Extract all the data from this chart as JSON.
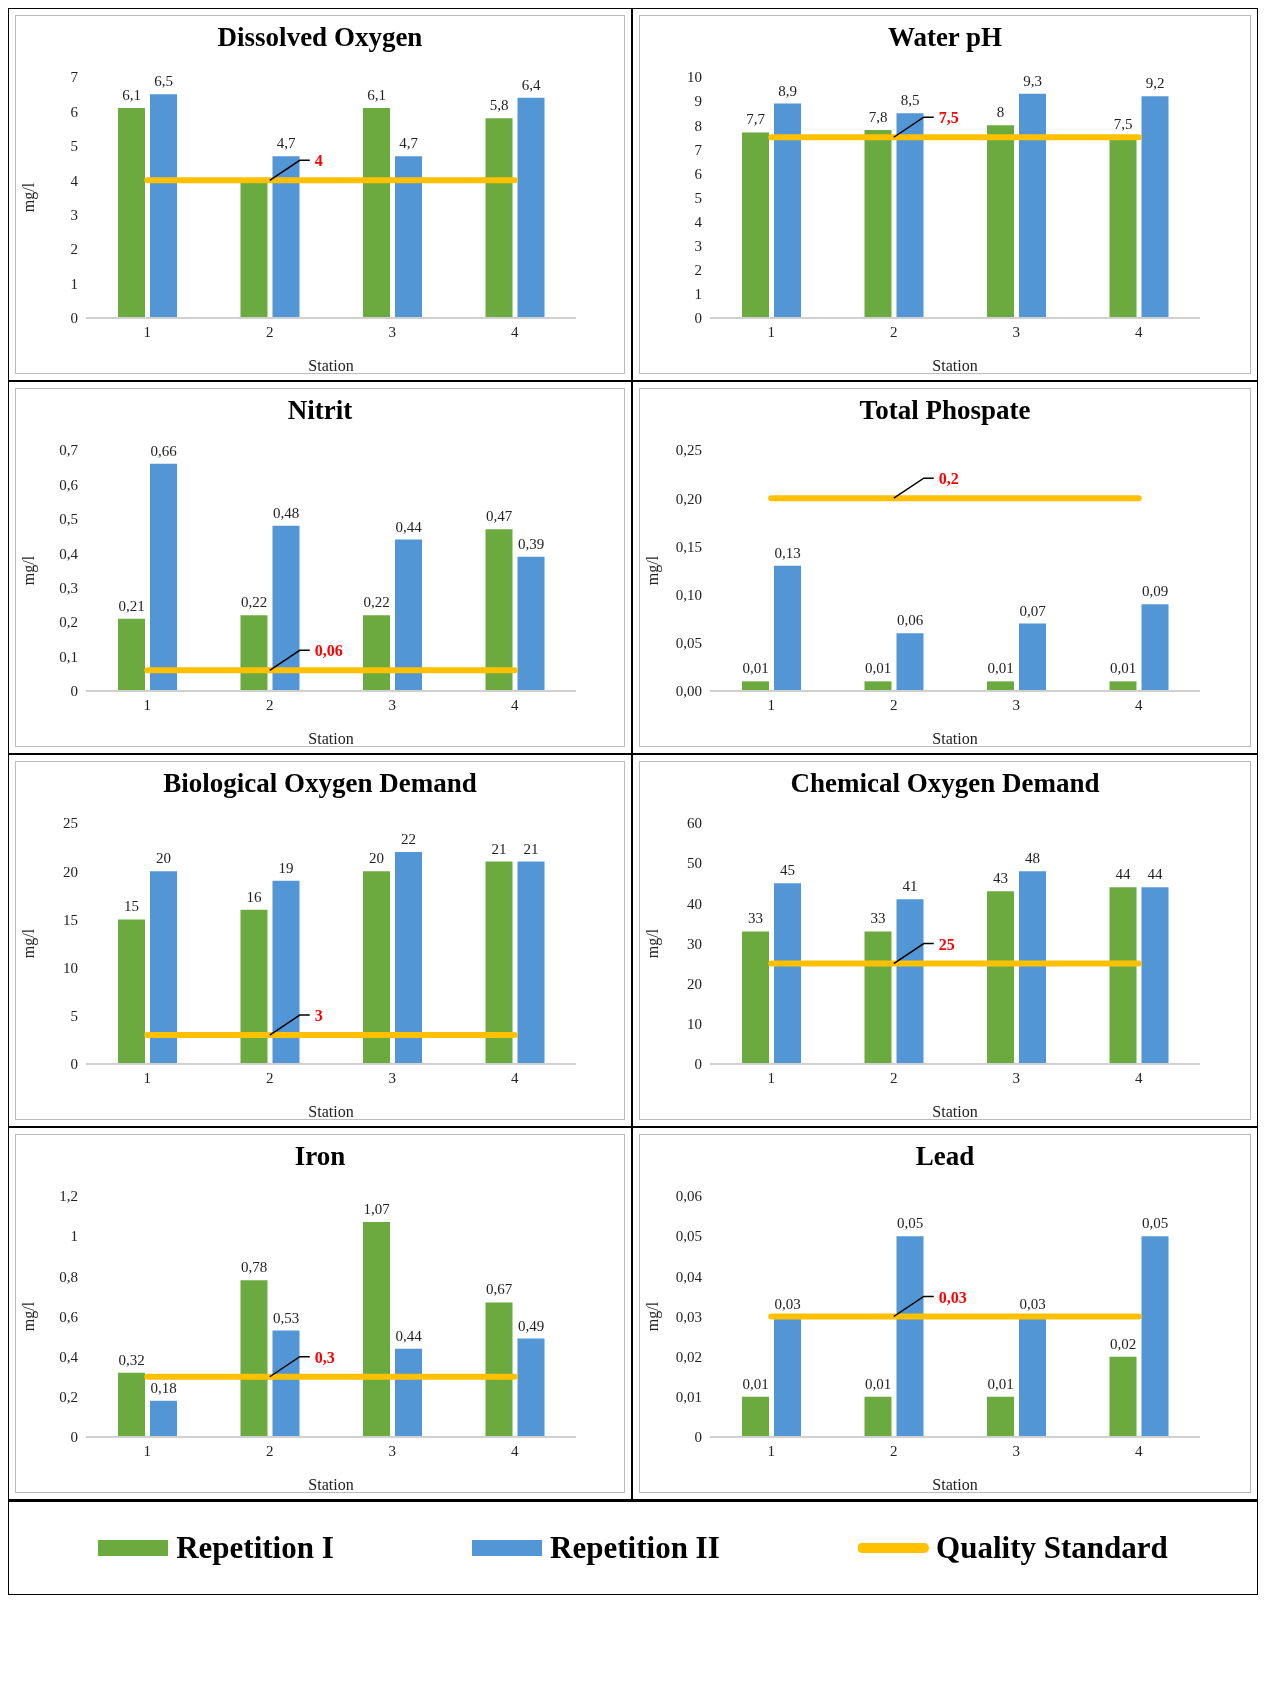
{
  "chart_data": [
    {
      "type": "bar",
      "title": "Dissolved Oxygen",
      "xlabel": "Station",
      "ylabel": "mg/l",
      "categories": [
        "1",
        "2",
        "3",
        "4"
      ],
      "ylim": [
        0,
        7
      ],
      "yticks": [
        0,
        1,
        2,
        3,
        4,
        5,
        6,
        7
      ],
      "grid": false,
      "legend": "bottom",
      "series": [
        {
          "name": "Repetition I",
          "color": "#6aaa3f",
          "values": [
            6.1,
            4,
            6.1,
            5.8
          ],
          "value_labels": [
            "6,1",
            null,
            "6,1",
            "5,8"
          ]
        },
        {
          "name": "Repetition II",
          "color": "#5296d5",
          "values": [
            6.5,
            4.7,
            4.7,
            6.4
          ],
          "value_labels": [
            "6,5",
            "4,7",
            "4,7",
            "6,4"
          ]
        },
        {
          "name": "Quality Standard",
          "type": "line",
          "color": "#ffc000",
          "values": [
            4,
            4,
            4,
            4
          ],
          "value_labels": [
            null,
            "4",
            null,
            null
          ]
        }
      ]
    },
    {
      "type": "bar",
      "title": "Water pH",
      "xlabel": "Station",
      "categories": [
        "1",
        "2",
        "3",
        "4"
      ],
      "ylim": [
        0,
        10
      ],
      "yticks": [
        0,
        1,
        2,
        3,
        4,
        5,
        6,
        7,
        8,
        9,
        10
      ],
      "grid": false,
      "series": [
        {
          "color": "#6aaa3f",
          "values": [
            7.7,
            7.8,
            8,
            7.5
          ],
          "value_labels": [
            "7,7",
            "7,8",
            "8",
            "7,5"
          ]
        },
        {
          "color": "#5296d5",
          "values": [
            8.9,
            8.5,
            9.3,
            9.2
          ],
          "value_labels": [
            "8,9",
            "8,5",
            "9,3",
            "9,2"
          ]
        },
        {
          "type": "line",
          "color": "#ffc000",
          "values": [
            7.5,
            7.5,
            7.5,
            7.5
          ],
          "value_labels": [
            null,
            "7,5",
            null,
            null
          ]
        }
      ]
    },
    {
      "type": "bar",
      "title": "Nitrit",
      "xlabel": "Station",
      "ylabel": "mg/l",
      "categories": [
        "1",
        "2",
        "3",
        "4"
      ],
      "ylim": [
        0,
        0.7
      ],
      "yticks": [
        0,
        {
          "value": 0.1,
          "label": "0,1"
        },
        {
          "value": 0.2,
          "label": "0,2"
        },
        {
          "value": 0.3,
          "label": "0,3"
        },
        {
          "value": 0.4,
          "label": "0,4"
        },
        {
          "value": 0.5,
          "label": "0,5"
        },
        {
          "value": 0.6,
          "label": "0,6"
        },
        {
          "value": 0.7,
          "label": "0,7"
        }
      ],
      "grid": false,
      "series": [
        {
          "color": "#6aaa3f",
          "values": [
            0.21,
            0.22,
            0.22,
            0.47
          ],
          "value_labels": [
            "0,21",
            "0,22",
            "0,22",
            "0,47"
          ]
        },
        {
          "color": "#5296d5",
          "values": [
            0.66,
            0.48,
            0.44,
            0.39
          ],
          "value_labels": [
            "0,66",
            "0,48",
            "0,44",
            "0,39"
          ]
        },
        {
          "type": "line",
          "color": "#ffc000",
          "values": [
            0.06,
            0.06,
            0.06,
            0.06
          ],
          "value_labels": [
            null,
            "0,06",
            null,
            null
          ]
        }
      ]
    },
    {
      "type": "bar",
      "title": "Total Phospate",
      "xlabel": "Station",
      "ylabel": "mg/l",
      "categories": [
        "1",
        "2",
        "3",
        "4"
      ],
      "ylim": [
        0,
        0.25
      ],
      "yticks": [
        {
          "value": 0,
          "label": "0,00"
        },
        {
          "value": 0.05,
          "label": "0,05"
        },
        {
          "value": 0.1,
          "label": "0,10"
        },
        {
          "value": 0.15,
          "label": "0,15"
        },
        {
          "value": 0.2,
          "label": "0,20"
        },
        {
          "value": 0.25,
          "label": "0,25"
        }
      ],
      "grid": false,
      "series": [
        {
          "color": "#6aaa3f",
          "values": [
            0.01,
            0.01,
            0.01,
            0.01
          ],
          "value_labels": [
            "0,01",
            "0,01",
            "0,01",
            "0,01"
          ]
        },
        {
          "color": "#5296d5",
          "values": [
            0.13,
            0.06,
            0.07,
            0.09
          ],
          "value_labels": [
            "0,13",
            "0,06",
            "0,07",
            "0,09"
          ]
        },
        {
          "type": "line",
          "color": "#ffc000",
          "values": [
            0.2,
            0.2,
            0.2,
            0.2
          ],
          "value_labels": [
            null,
            "0,2",
            null,
            null
          ]
        }
      ]
    },
    {
      "type": "bar",
      "title": "Biological Oxygen Demand",
      "xlabel": "Station",
      "ylabel": "mg/l",
      "categories": [
        "1",
        "2",
        "3",
        "4"
      ],
      "ylim": [
        0,
        25
      ],
      "yticks": [
        0,
        5,
        10,
        15,
        20,
        25
      ],
      "grid": false,
      "series": [
        {
          "color": "#6aaa3f",
          "values": [
            15,
            16,
            20,
            21
          ],
          "value_labels": [
            "15",
            "16",
            "20",
            "21"
          ]
        },
        {
          "color": "#5296d5",
          "values": [
            20,
            19,
            22,
            21
          ],
          "value_labels": [
            "20",
            "19",
            "22",
            "21"
          ]
        },
        {
          "type": "line",
          "color": "#ffc000",
          "values": [
            3,
            3,
            3,
            3
          ],
          "value_labels": [
            null,
            "3",
            null,
            null
          ]
        }
      ]
    },
    {
      "type": "bar",
      "title": "Chemical Oxygen Demand",
      "xlabel": "Station",
      "ylabel": "mg/l",
      "categories": [
        "1",
        "2",
        "3",
        "4"
      ],
      "ylim": [
        0,
        60
      ],
      "yticks": [
        0,
        10,
        20,
        30,
        40,
        50,
        60
      ],
      "grid": false,
      "series": [
        {
          "color": "#6aaa3f",
          "values": [
            33,
            33,
            43,
            44
          ],
          "value_labels": [
            "33",
            "33",
            "43",
            "44"
          ]
        },
        {
          "color": "#5296d5",
          "values": [
            45,
            41,
            48,
            44
          ],
          "value_labels": [
            "45",
            "41",
            "48",
            "44"
          ]
        },
        {
          "type": "line",
          "color": "#ffc000",
          "values": [
            25,
            25,
            25,
            25
          ],
          "value_labels": [
            null,
            "25",
            null,
            null
          ]
        }
      ]
    },
    {
      "type": "bar",
      "title": "Iron",
      "xlabel": "Station",
      "ylabel": "mg/l",
      "categories": [
        "1",
        "2",
        "3",
        "4"
      ],
      "ylim": [
        0,
        1.2
      ],
      "yticks": [
        0,
        {
          "value": 0.2,
          "label": "0,2"
        },
        {
          "value": 0.4,
          "label": "0,4"
        },
        {
          "value": 0.6,
          "label": "0,6"
        },
        {
          "value": 0.8,
          "label": "0,8"
        },
        1,
        {
          "value": 1.2,
          "label": "1,2"
        }
      ],
      "grid": false,
      "series": [
        {
          "color": "#6aaa3f",
          "values": [
            0.32,
            0.78,
            1.07,
            0.67
          ],
          "value_labels": [
            "0,32",
            "0,78",
            "1,07",
            "0,67"
          ]
        },
        {
          "color": "#5296d5",
          "values": [
            0.18,
            0.53,
            0.44,
            0.49
          ],
          "value_labels": [
            "0,18",
            "0,53",
            "0,44",
            "0,49"
          ]
        },
        {
          "type": "line",
          "color": "#ffc000",
          "values": [
            0.3,
            0.3,
            0.3,
            0.3
          ],
          "value_labels": [
            null,
            "0,3",
            null,
            null
          ]
        }
      ]
    },
    {
      "type": "bar",
      "title": "Lead",
      "xlabel": "Station",
      "ylabel": "mg/l",
      "categories": [
        "1",
        "2",
        "3",
        "4"
      ],
      "ylim": [
        0,
        0.06
      ],
      "yticks": [
        0,
        {
          "value": 0.01,
          "label": "0,01"
        },
        {
          "value": 0.02,
          "label": "0,02"
        },
        {
          "value": 0.03,
          "label": "0,03"
        },
        {
          "value": 0.04,
          "label": "0,04"
        },
        {
          "value": 0.05,
          "label": "0,05"
        },
        {
          "value": 0.06,
          "label": "0,06"
        }
      ],
      "grid": false,
      "series": [
        {
          "color": "#6aaa3f",
          "values": [
            0.01,
            0.01,
            0.01,
            0.02
          ],
          "value_labels": [
            "0,01",
            "0,01",
            "0,01",
            "0,02"
          ]
        },
        {
          "color": "#5296d5",
          "values": [
            0.03,
            0.05,
            0.03,
            0.05
          ],
          "value_labels": [
            "0,03",
            "0,05",
            "0,03",
            "0,05"
          ]
        },
        {
          "type": "line",
          "color": "#ffc000",
          "values": [
            0.03,
            0.03,
            0.03,
            0.03
          ],
          "value_labels": [
            null,
            "0,03",
            null,
            null
          ]
        }
      ]
    }
  ]
}
